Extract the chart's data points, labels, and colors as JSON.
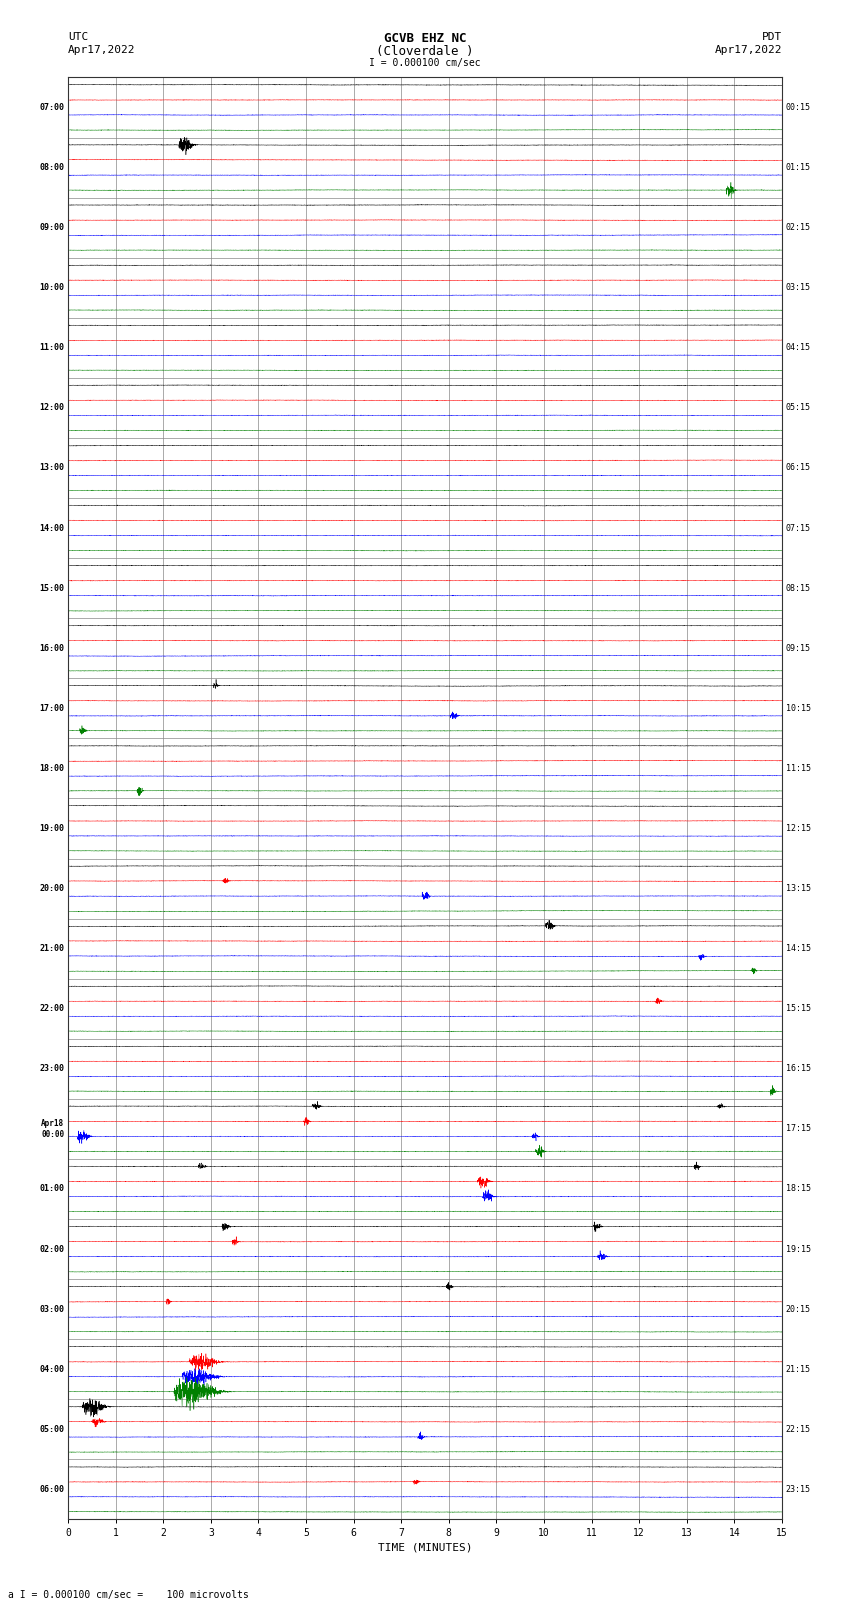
{
  "title_line1": "GCVB EHZ NC",
  "title_line2": "(Cloverdale )",
  "scale_label": "I = 0.000100 cm/sec",
  "left_label_line1": "UTC",
  "left_label_line2": "Apr17,2022",
  "right_label_line1": "PDT",
  "right_label_line2": "Apr17,2022",
  "bottom_label": "a I = 0.000100 cm/sec =    100 microvolts",
  "xlabel": "TIME (MINUTES)",
  "utc_times": [
    "07:00",
    "08:00",
    "09:00",
    "10:00",
    "11:00",
    "12:00",
    "13:00",
    "14:00",
    "15:00",
    "16:00",
    "17:00",
    "18:00",
    "19:00",
    "20:00",
    "21:00",
    "22:00",
    "23:00",
    "Apr18\n00:00",
    "01:00",
    "02:00",
    "03:00",
    "04:00",
    "05:00",
    "06:00"
  ],
  "pdt_times": [
    "00:15",
    "01:15",
    "02:15",
    "03:15",
    "04:15",
    "05:15",
    "06:15",
    "07:15",
    "08:15",
    "09:15",
    "10:15",
    "11:15",
    "12:15",
    "13:15",
    "14:15",
    "15:15",
    "16:15",
    "17:15",
    "18:15",
    "19:15",
    "20:15",
    "21:15",
    "22:15",
    "23:15"
  ],
  "colors": [
    "black",
    "red",
    "blue",
    "green"
  ],
  "bg_color": "#ffffff",
  "plot_bg_color": "#ffffff",
  "grid_color": "#888888",
  "n_rows": 24,
  "n_traces_per_row": 4,
  "minutes": 15,
  "noise_amplitude": 0.012,
  "sample_rate": 100,
  "events": [
    {
      "row": 1,
      "trace": 0,
      "minute": 2.45,
      "amplitude": 0.35,
      "duration": 0.5
    },
    {
      "row": 1,
      "trace": 3,
      "minute": 13.9,
      "amplitude": 0.25,
      "duration": 0.3
    },
    {
      "row": 10,
      "trace": 3,
      "minute": 0.3,
      "amplitude": 0.18,
      "duration": 0.2
    },
    {
      "row": 10,
      "trace": 0,
      "minute": 3.1,
      "amplitude": 0.15,
      "duration": 0.15
    },
    {
      "row": 10,
      "trace": 2,
      "minute": 8.1,
      "amplitude": 0.2,
      "duration": 0.25
    },
    {
      "row": 11,
      "trace": 3,
      "minute": 1.5,
      "amplitude": 0.18,
      "duration": 0.2
    },
    {
      "row": 13,
      "trace": 2,
      "minute": 7.5,
      "amplitude": 0.2,
      "duration": 0.25
    },
    {
      "row": 13,
      "trace": 1,
      "minute": 3.3,
      "amplitude": 0.15,
      "duration": 0.2
    },
    {
      "row": 14,
      "trace": 0,
      "minute": 10.1,
      "amplitude": 0.22,
      "duration": 0.3
    },
    {
      "row": 14,
      "trace": 2,
      "minute": 13.3,
      "amplitude": 0.16,
      "duration": 0.2
    },
    {
      "row": 14,
      "trace": 3,
      "minute": 14.4,
      "amplitude": 0.15,
      "duration": 0.15
    },
    {
      "row": 15,
      "trace": 1,
      "minute": 12.4,
      "amplitude": 0.15,
      "duration": 0.2
    },
    {
      "row": 16,
      "trace": 3,
      "minute": 14.8,
      "amplitude": 0.18,
      "duration": 0.2
    },
    {
      "row": 17,
      "trace": 2,
      "minute": 0.3,
      "amplitude": 0.3,
      "duration": 0.4
    },
    {
      "row": 17,
      "trace": 0,
      "minute": 5.2,
      "amplitude": 0.2,
      "duration": 0.25
    },
    {
      "row": 17,
      "trace": 1,
      "minute": 5.0,
      "amplitude": 0.18,
      "duration": 0.2
    },
    {
      "row": 17,
      "trace": 2,
      "minute": 9.8,
      "amplitude": 0.18,
      "duration": 0.2
    },
    {
      "row": 17,
      "trace": 3,
      "minute": 9.9,
      "amplitude": 0.22,
      "duration": 0.3
    },
    {
      "row": 17,
      "trace": 0,
      "minute": 13.7,
      "amplitude": 0.15,
      "duration": 0.2
    },
    {
      "row": 18,
      "trace": 0,
      "minute": 2.8,
      "amplitude": 0.18,
      "duration": 0.25
    },
    {
      "row": 18,
      "trace": 1,
      "minute": 8.7,
      "amplitude": 0.28,
      "duration": 0.4
    },
    {
      "row": 18,
      "trace": 2,
      "minute": 8.8,
      "amplitude": 0.25,
      "duration": 0.35
    },
    {
      "row": 18,
      "trace": 0,
      "minute": 13.2,
      "amplitude": 0.18,
      "duration": 0.2
    },
    {
      "row": 19,
      "trace": 0,
      "minute": 3.3,
      "amplitude": 0.2,
      "duration": 0.25
    },
    {
      "row": 19,
      "trace": 1,
      "minute": 3.5,
      "amplitude": 0.18,
      "duration": 0.2
    },
    {
      "row": 19,
      "trace": 2,
      "minute": 11.2,
      "amplitude": 0.22,
      "duration": 0.3
    },
    {
      "row": 19,
      "trace": 0,
      "minute": 11.1,
      "amplitude": 0.2,
      "duration": 0.25
    },
    {
      "row": 20,
      "trace": 1,
      "minute": 2.1,
      "amplitude": 0.15,
      "duration": 0.15
    },
    {
      "row": 20,
      "trace": 0,
      "minute": 8.0,
      "amplitude": 0.18,
      "duration": 0.2
    },
    {
      "row": 21,
      "trace": 3,
      "minute": 2.6,
      "amplitude": 0.6,
      "duration": 1.5
    },
    {
      "row": 21,
      "trace": 2,
      "minute": 2.7,
      "amplitude": 0.35,
      "duration": 1.2
    },
    {
      "row": 21,
      "trace": 1,
      "minute": 2.8,
      "amplitude": 0.3,
      "duration": 1.0
    },
    {
      "row": 22,
      "trace": 0,
      "minute": 0.5,
      "amplitude": 0.4,
      "duration": 0.8
    },
    {
      "row": 22,
      "trace": 1,
      "minute": 0.6,
      "amplitude": 0.2,
      "duration": 0.4
    },
    {
      "row": 22,
      "trace": 2,
      "minute": 7.4,
      "amplitude": 0.18,
      "duration": 0.2
    },
    {
      "row": 23,
      "trace": 1,
      "minute": 7.3,
      "amplitude": 0.15,
      "duration": 0.2
    }
  ]
}
